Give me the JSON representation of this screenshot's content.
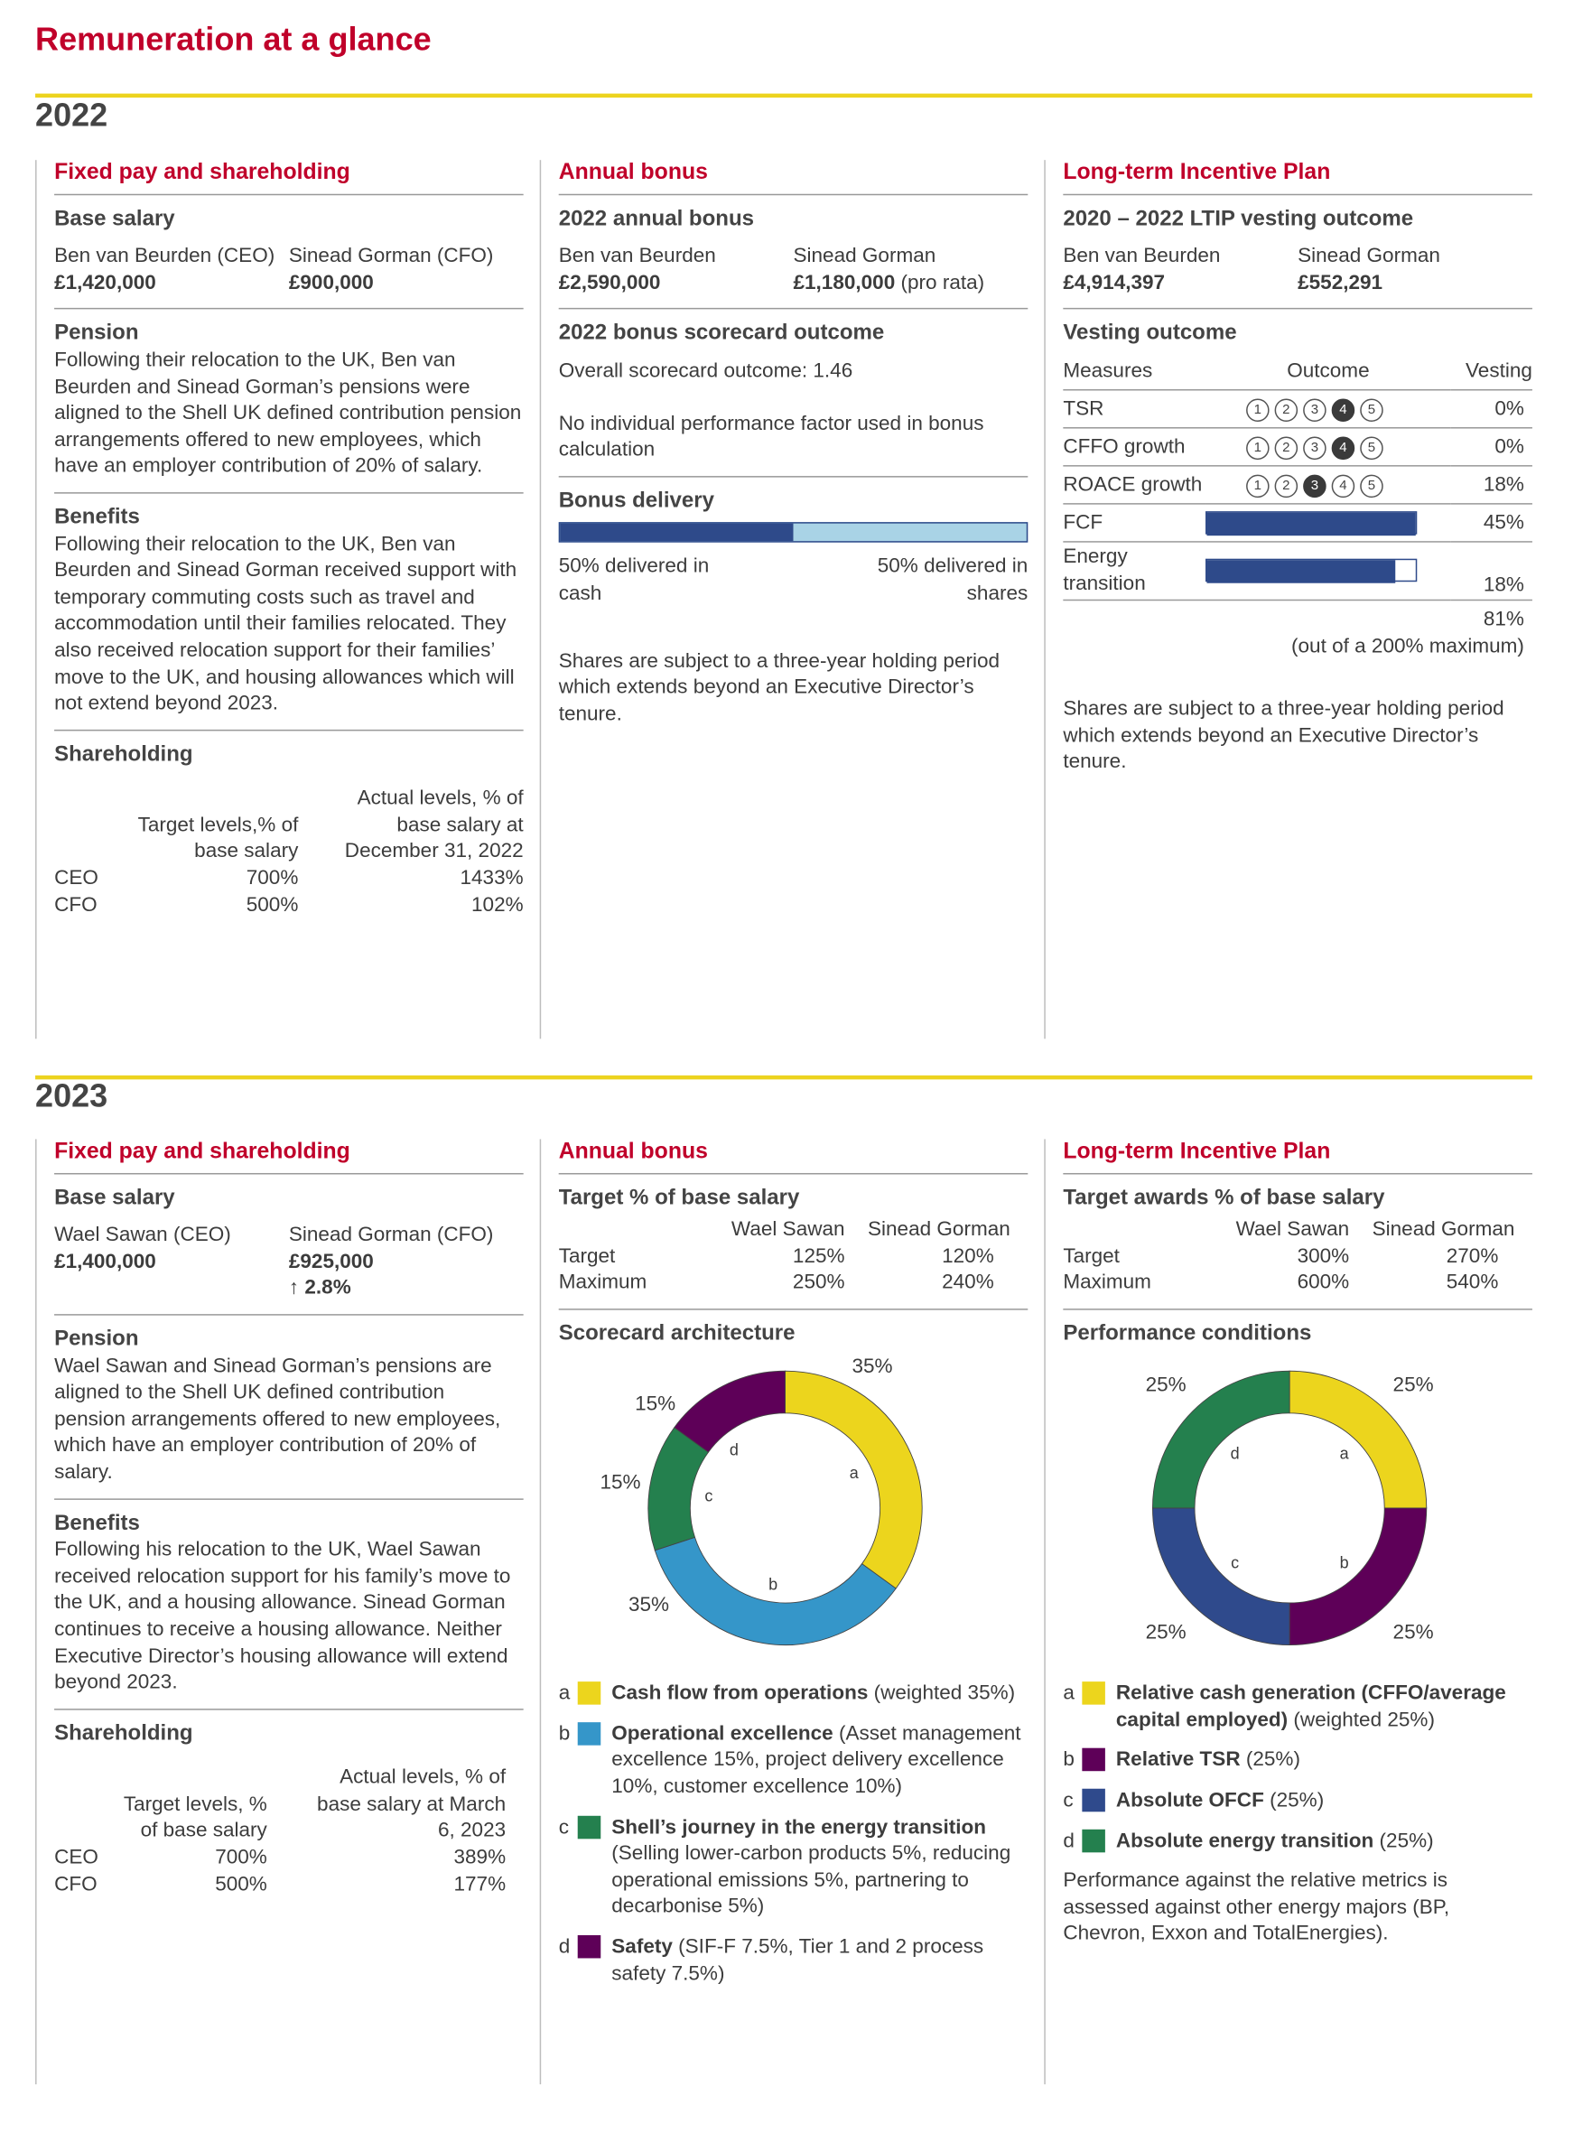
{
  "title": "Remuneration at a glance",
  "colors": {
    "accent_red": "#c0002a",
    "rule_yellow": "#ecd31f",
    "navy": "#2e4a8a",
    "light_blue": "#a9d3e6"
  },
  "y2022": {
    "year": "2022",
    "fixed": {
      "header": "Fixed pay and shareholding",
      "base_heading": "Base salary",
      "ceo_name": "Ben van Beurden (CEO)",
      "ceo_salary": "£1,420,000",
      "cfo_name": "Sinead Gorman (CFO)",
      "cfo_salary": "£900,000",
      "pension_heading": "Pension",
      "pension_text": "Following their relocation to the UK, Ben van Beurden and Sinead Gorman’s pensions were aligned to the Shell UK defined contribution pension arrangements offered to new employees, which have an employer contribution of 20% of salary.",
      "benefits_heading": "Benefits",
      "benefits_text": "Following their relocation to the UK, Ben van Beurden and Sinead Gorman received support with temporary commuting costs such as travel and accommodation until their families relocated. They also received relocation support for their families’ move to the UK, and housing allowances which will not extend beyond 2023.",
      "shareholding_heading": "Shareholding",
      "col_target": "Target levels,% of base salary",
      "col_actual": "Actual levels, % of base salary at December 31, 2022",
      "rows": [
        {
          "role": "CEO",
          "target": "700%",
          "actual": "1433%"
        },
        {
          "role": "CFO",
          "target": "500%",
          "actual": "102%"
        }
      ]
    },
    "bonus": {
      "header": "Annual bonus",
      "heading": "2022 annual bonus",
      "ceo_name": "Ben van Beurden",
      "ceo_amount": "£2,590,000",
      "cfo_name": "Sinead Gorman",
      "cfo_amount": "£1,180,000",
      "cfo_note": "(pro rata)",
      "scorecard_heading": "2022 bonus scorecard outcome",
      "scorecard_text": "Overall scorecard outcome: 1.46",
      "factor_text": "No individual performance factor used in bonus calculation",
      "delivery_heading": "Bonus delivery",
      "cash_pct": 50,
      "cash_label": "50% delivered in cash",
      "shares_label": "50% delivered in shares",
      "holding_text": "Shares are subject to a three-year holding period which extends beyond an Executive Director’s tenure."
    },
    "ltip": {
      "header": "Long-term Incentive Plan",
      "heading": "2020 – 2022 LTIP vesting outcome",
      "ceo_name": "Ben van Beurden",
      "ceo_amount": "£4,914,397",
      "cfo_name": "Sinead Gorman",
      "cfo_amount": "£552,291",
      "vesting_heading": "Vesting outcome",
      "col_measures": "Measures",
      "col_outcome": "Outcome",
      "col_vesting": "Vesting",
      "rows": [
        {
          "measure": "TSR",
          "rank": 4,
          "vesting": "0%"
        },
        {
          "measure": "CFFO growth",
          "rank": 4,
          "vesting": "0%"
        },
        {
          "measure": "ROACE growth",
          "rank": 3,
          "vesting": "18%"
        },
        {
          "measure": "FCF",
          "bar_fraction": 1.0,
          "vesting": "45%"
        },
        {
          "measure": "Energy transition",
          "bar_fraction": 0.9,
          "vesting": "18%"
        }
      ],
      "total": "81%",
      "total_note": "(out of a 200% maximum)",
      "holding_text": "Shares are subject to a three-year holding period which extends beyond an Executive Director’s tenure."
    }
  },
  "y2023": {
    "year": "2023",
    "fixed": {
      "header": "Fixed pay and shareholding",
      "base_heading": "Base salary",
      "ceo_name": "Wael Sawan (CEO)",
      "ceo_salary": "£1,400,000",
      "cfo_name": "Sinead Gorman (CFO)",
      "cfo_salary": "£925,000",
      "cfo_increase": "2.8%",
      "pension_heading": "Pension",
      "pension_text": "Wael Sawan and Sinead Gorman’s pensions are aligned to the Shell UK defined contribution pension arrangements offered to new employees, which have an employer contribution of 20% of salary.",
      "benefits_heading": "Benefits",
      "benefits_text": "Following his relocation to the UK, Wael Sawan received relocation support for his family’s move to the UK, and a housing allowance. Sinead Gorman continues to receive a housing allowance. Neither Executive Director’s housing allowance will extend beyond 2023.",
      "shareholding_heading": "Shareholding",
      "col_target": "Target levels, % of base salary",
      "col_actual": "Actual levels, % of base salary at March 6, 2023",
      "rows": [
        {
          "role": "CEO",
          "target": "700%",
          "actual": "389%"
        },
        {
          "role": "CFO",
          "target": "500%",
          "actual": "177%"
        }
      ]
    },
    "bonus": {
      "header": "Annual bonus",
      "heading": "Target % of base salary",
      "col1": "Wael Sawan",
      "col2": "Sinead Gorman",
      "rows": [
        {
          "label": "Target",
          "v1": "125%",
          "v2": "120%"
        },
        {
          "label": "Maximum",
          "v1": "250%",
          "v2": "240%"
        }
      ],
      "chart_heading": "Scorecard architecture",
      "legend": [
        {
          "key": "a",
          "bold": "Cash flow from operations",
          "rest": "(weighted 35%)",
          "color": "#ecd51d"
        },
        {
          "key": "b",
          "bold": "Operational excellence",
          "rest": "(Asset management excellence 15%, project delivery excellence 10%, customer excellence 10%)",
          "color": "#3596c9"
        },
        {
          "key": "c",
          "bold": "Shell’s journey in the energy transition",
          "rest": "(Selling lower-carbon products 5%, reducing operational emissions 5%, partnering to decarbonise 5%)",
          "color": "#24804e"
        },
        {
          "key": "d",
          "bold": "Safety",
          "rest": "(SIF-F 7.5%, Tier 1 and 2 process safety 7.5%)",
          "color": "#5e0058"
        }
      ]
    },
    "ltip": {
      "header": "Long-term Incentive Plan",
      "heading": "Target awards % of base salary",
      "col1": "Wael Sawan",
      "col2": "Sinead Gorman",
      "rows": [
        {
          "label": "Target",
          "v1": "300%",
          "v2": "270%"
        },
        {
          "label": "Maximum",
          "v1": "600%",
          "v2": "540%"
        }
      ],
      "chart_heading": "Performance conditions",
      "legend": [
        {
          "key": "a",
          "bold": "Relative cash generation (CFFO/average capital employed)",
          "rest": "(weighted 25%)",
          "color": "#ecd51d"
        },
        {
          "key": "b",
          "bold": "Relative TSR",
          "rest": "(25%)",
          "color": "#5e0058"
        },
        {
          "key": "c",
          "bold": "Absolute OFCF",
          "rest": "(25%)",
          "color": "#2f4a8c"
        },
        {
          "key": "d",
          "bold": "Absolute energy transition",
          "rest": "(25%)",
          "color": "#24804e"
        }
      ],
      "note": "Performance against the relative metrics is assessed against other energy majors (BP, Chevron, Exxon and TotalEnergies)."
    }
  },
  "chart_data": [
    {
      "type": "pie",
      "title": "Scorecard architecture",
      "categories": [
        "a",
        "b",
        "c",
        "d"
      ],
      "values": [
        35,
        35,
        15,
        15
      ],
      "labels": [
        "35%",
        "35%",
        "15%",
        "15%"
      ],
      "colors": [
        "#ecd51d",
        "#3596c9",
        "#24804e",
        "#5e0058"
      ],
      "donut": true
    },
    {
      "type": "pie",
      "title": "Performance conditions",
      "categories": [
        "a",
        "b",
        "c",
        "d"
      ],
      "values": [
        25,
        25,
        25,
        25
      ],
      "labels": [
        "25%",
        "25%",
        "25%",
        "25%"
      ],
      "colors": [
        "#ecd51d",
        "#5e0058",
        "#2f4a8c",
        "#24804e"
      ],
      "donut": true
    }
  ]
}
